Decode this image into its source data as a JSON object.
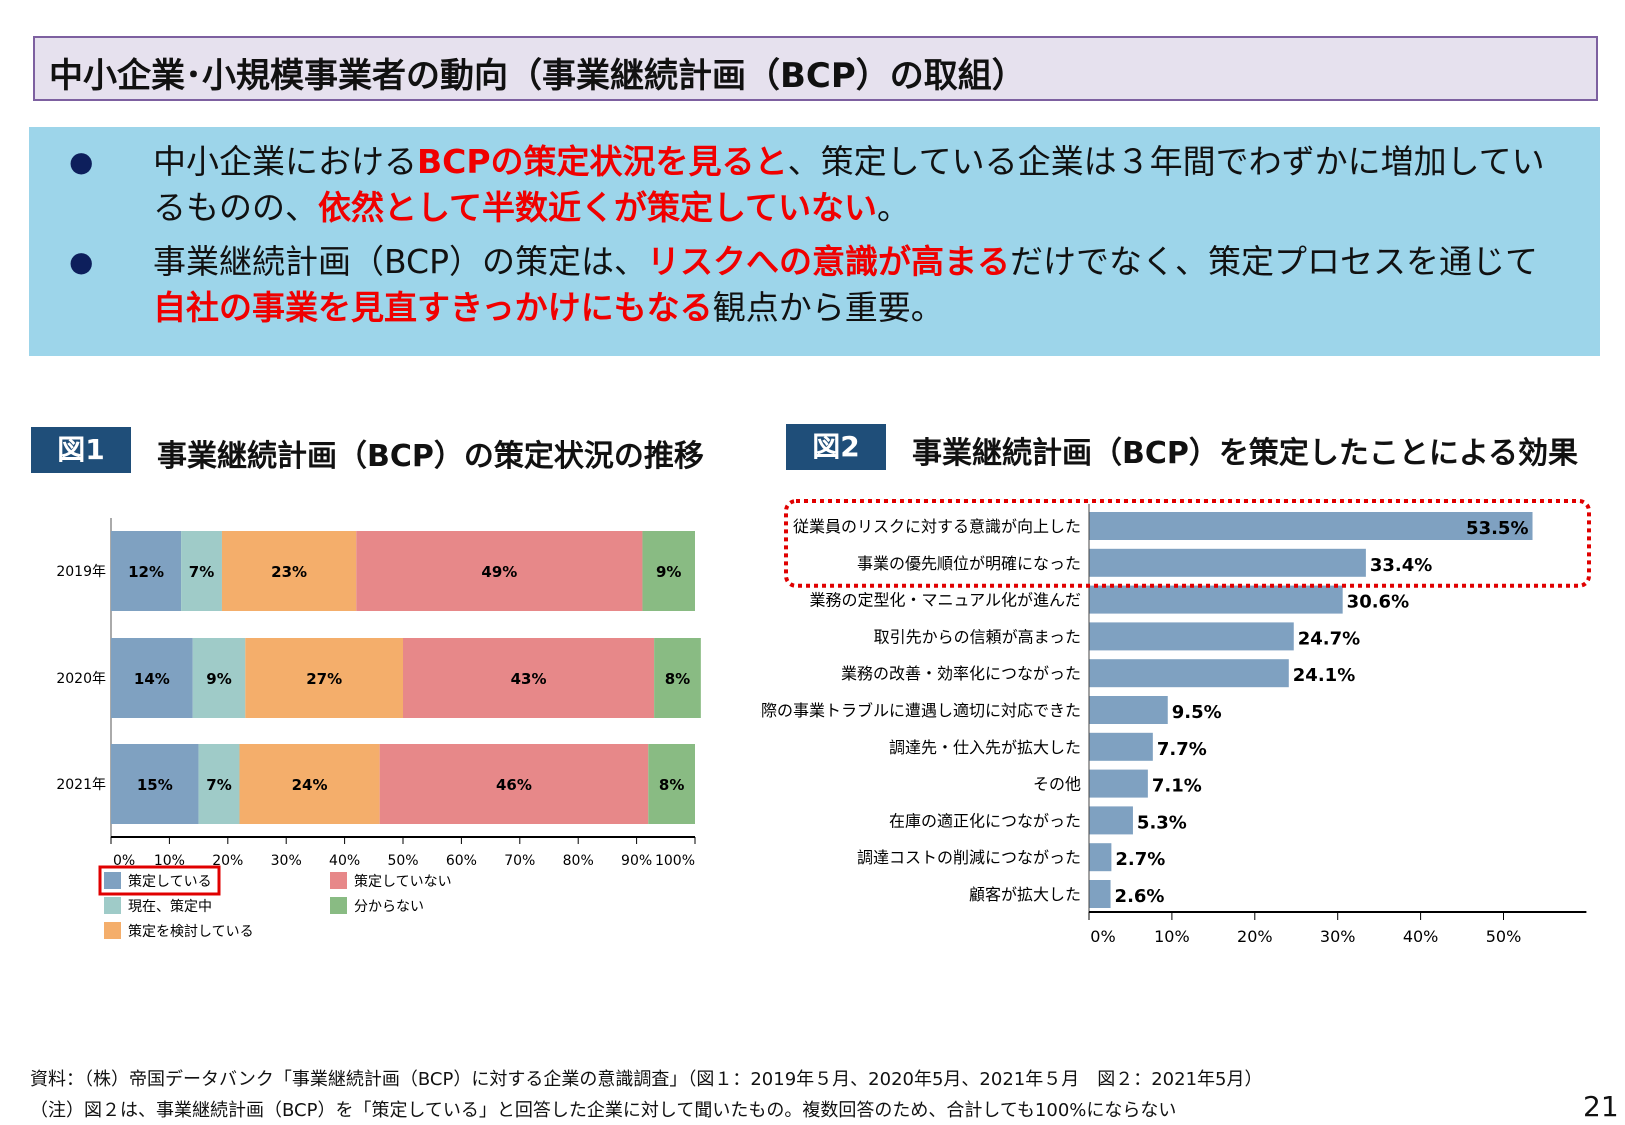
{
  "title": "中小企業･小規模事業者の動向（事業継続計画（BCP）の取組）",
  "summary": {
    "bullet_icon": "●",
    "bullets": [
      {
        "parts": [
          {
            "text": "中小企業における",
            "emph": false
          },
          {
            "text": "BCPの策定状況を見ると",
            "emph": true
          },
          {
            "text": "、策定している企業は３年間でわずかに増加しているものの、",
            "emph": false
          },
          {
            "text": "依然として半数近くが策定していない",
            "emph": true
          },
          {
            "text": "。",
            "emph": false
          }
        ]
      },
      {
        "parts": [
          {
            "text": "事業継続計画（BCP）の策定は、",
            "emph": false
          },
          {
            "text": "リスクへの意識が高まる",
            "emph": true
          },
          {
            "text": "だけでなく、策定プロセスを通じて",
            "emph": false
          },
          {
            "text": "自社の事業を見直すきっかけにもなる",
            "emph": true
          },
          {
            "text": "観点から重要。",
            "emph": false
          }
        ]
      }
    ],
    "emphasis_color": "#f00000"
  },
  "figure1": {
    "tag": "図1",
    "title": "事業継続計画（BCP）の策定状況の推移"
  },
  "figure2": {
    "tag": "図2",
    "title": "事業継続計画（BCP）を策定したことによる効果"
  },
  "chart_data": [
    {
      "type": "bar",
      "orientation": "horizontal",
      "stacked": true,
      "categories": [
        "2019年",
        "2020年",
        "2021年"
      ],
      "series": [
        {
          "name": "策定している",
          "color": "#7fa1c1",
          "values": [
            12,
            14,
            15
          ]
        },
        {
          "name": "現在、策定中",
          "color": "#9fcbc8",
          "values": [
            7,
            9,
            7
          ]
        },
        {
          "name": "策定を検討している",
          "color": "#f4ae6b",
          "values": [
            23,
            27,
            24
          ]
        },
        {
          "name": "策定していない",
          "color": "#e78889",
          "values": [
            49,
            43,
            46
          ]
        },
        {
          "name": "分からない",
          "color": "#89bb83",
          "values": [
            9,
            8,
            8
          ]
        }
      ],
      "value_suffix": "%",
      "xlim": [
        0,
        100
      ],
      "x_ticks": [
        "0%",
        "10%",
        "20%",
        "30%",
        "40%",
        "50%",
        "60%",
        "70%",
        "80%",
        "90%",
        "100%"
      ],
      "legend_position": "bottom",
      "highlighted_legend_entry": "策定している",
      "highlight_color": "#e00000"
    },
    {
      "type": "bar",
      "orientation": "horizontal",
      "categories": [
        "従業員のリスクに対する意識が向上した",
        "事業の優先順位が明確になった",
        "業務の定型化・マニュアル化が進んだ",
        "取引先からの信頼が高まった",
        "業務の改善・効率化につながった",
        "実際の事業トラブルに遭遇し適切に対応できた",
        "調達先・仕入先が拡大した",
        "その他",
        "在庫の適正化につながった",
        "調達コストの削減につながった",
        "顧客が拡大した"
      ],
      "values": [
        53.5,
        33.4,
        30.6,
        24.7,
        24.1,
        9.5,
        7.7,
        7.1,
        5.3,
        2.7,
        2.6
      ],
      "value_labels": [
        "53.5%",
        "33.4%",
        "30.6%",
        "24.7%",
        "24.1%",
        "9.5%",
        "7.7%",
        "7.1%",
        "5.3%",
        "2.7%",
        "2.6%"
      ],
      "color": "#7fa1c1",
      "xlim": [
        0,
        60
      ],
      "x_ticks": [
        "0%",
        "10%",
        "20%",
        "30%",
        "40%",
        "50%"
      ],
      "highlighted_rows": [
        0,
        1
      ],
      "highlight_color": "#e00000"
    }
  ],
  "footnotes": [
    "資料：（株）帝国データバンク「事業継続計画（BCP）に対する企業の意識調査」（図１：2019年５月、2020年5月、2021年５月　図２：2021年5月）",
    "（注）図２は、事業継続計画（BCP）を「策定している」と回答した企業に対して聞いたもの。複数回答のため、合計しても100%にならない"
  ],
  "page_number": "21"
}
